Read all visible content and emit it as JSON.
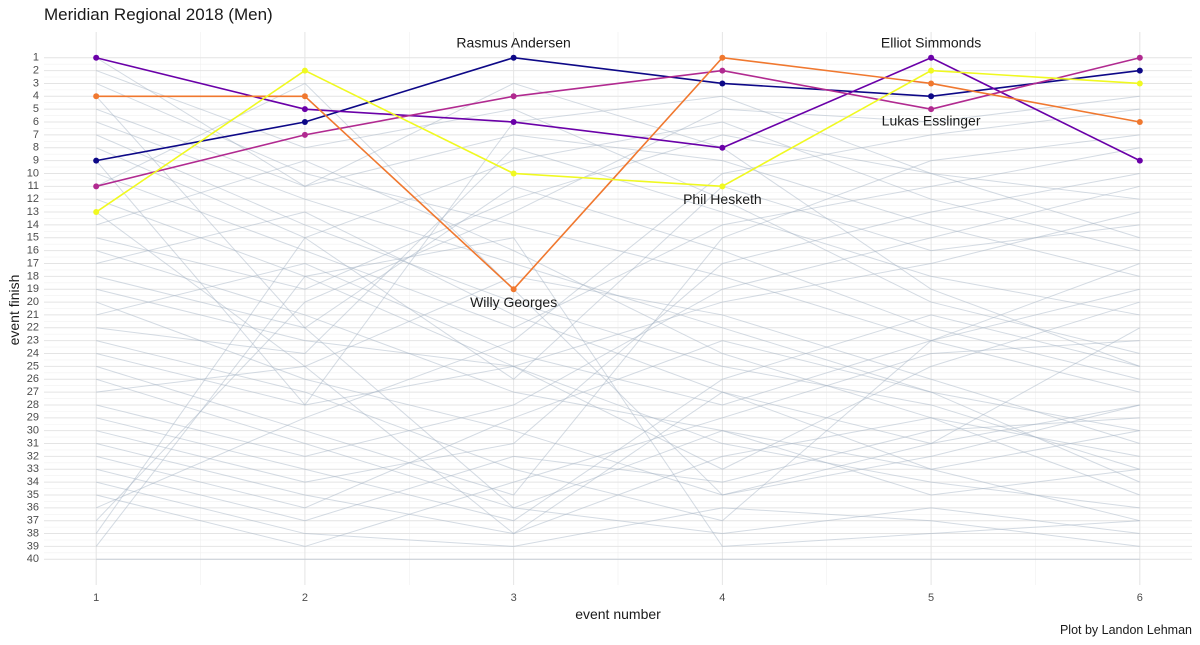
{
  "title": "Meridian Regional 2018 (Men)",
  "caption": "Plot by Landon Lehman",
  "chart_data": {
    "type": "line",
    "title": "Meridian Regional 2018 (Men)",
    "xlabel": "event number",
    "ylabel": "event finish",
    "x": [
      1,
      2,
      3,
      4,
      5,
      6
    ],
    "xlim": [
      0.75,
      6.25
    ],
    "ylim": [
      42,
      -1
    ],
    "y_reversed": true,
    "y_ticks": [
      1,
      2,
      3,
      4,
      5,
      6,
      7,
      8,
      9,
      10,
      11,
      12,
      13,
      14,
      15,
      16,
      17,
      18,
      19,
      20,
      21,
      22,
      23,
      24,
      25,
      26,
      27,
      28,
      29,
      30,
      31,
      32,
      33,
      34,
      35,
      36,
      37,
      38,
      39,
      40
    ],
    "grid": true,
    "series": [
      {
        "name": "Rasmus Andersen",
        "color": "#0d0887",
        "values": [
          9,
          6,
          1,
          3,
          4,
          2
        ]
      },
      {
        "name": "Elliot Simmonds",
        "color": "#6a00a8",
        "values": [
          1,
          5,
          6,
          8,
          1,
          9
        ]
      },
      {
        "name": "Lukas Esslinger",
        "color": "#b12a90",
        "values": [
          11,
          7,
          4,
          2,
          5,
          1
        ]
      },
      {
        "name": "Willy Georges",
        "color": "#f0782f",
        "values": [
          4,
          4,
          19,
          1,
          3,
          6
        ]
      },
      {
        "name": "Phil Hesketh",
        "color": "#f0f921",
        "values": [
          13,
          2,
          10,
          11,
          2,
          3
        ]
      }
    ],
    "annotations": [
      {
        "text": "Rasmus Andersen",
        "x": 3,
        "y": -0.1
      },
      {
        "text": "Elliot Simmonds",
        "x": 5,
        "y": -0.1
      },
      {
        "text": "Lukas Esslinger",
        "x": 5,
        "y": 6.0
      },
      {
        "text": "Phil Hesketh",
        "x": 4,
        "y": 12.1
      },
      {
        "text": "Willy Georges",
        "x": 3,
        "y": 20.1
      }
    ],
    "background_series_color": "#9fb0c2",
    "background_series": [
      [
        2,
        8,
        5,
        12,
        20,
        24
      ],
      [
        3,
        10,
        14,
        18,
        23,
        27
      ],
      [
        5,
        11,
        7,
        9,
        14,
        18
      ],
      [
        6,
        12,
        17,
        22,
        27,
        30
      ],
      [
        7,
        14,
        20,
        25,
        28,
        33
      ],
      [
        8,
        15,
        9,
        6,
        12,
        16
      ],
      [
        10,
        16,
        22,
        14,
        11,
        8
      ],
      [
        12,
        18,
        25,
        20,
        17,
        13
      ],
      [
        14,
        9,
        16,
        24,
        29,
        35
      ],
      [
        15,
        19,
        12,
        7,
        10,
        15
      ],
      [
        16,
        21,
        27,
        30,
        33,
        37
      ],
      [
        17,
        13,
        21,
        27,
        31,
        22
      ],
      [
        18,
        22,
        11,
        16,
        22,
        26
      ],
      [
        19,
        23,
        25,
        33,
        25,
        20
      ],
      [
        20,
        26,
        30,
        35,
        32,
        28
      ],
      [
        21,
        17,
        24,
        28,
        23,
        19
      ],
      [
        22,
        24,
        8,
        13,
        18,
        21
      ],
      [
        23,
        27,
        33,
        37,
        23,
        17
      ],
      [
        24,
        28,
        25,
        31,
        34,
        36
      ],
      [
        25,
        30,
        35,
        15,
        9,
        7
      ],
      [
        26,
        31,
        36,
        38,
        36,
        38
      ],
      [
        27,
        25,
        18,
        21,
        26,
        31
      ],
      [
        28,
        32,
        28,
        19,
        15,
        11
      ],
      [
        29,
        33,
        37,
        26,
        21,
        25
      ],
      [
        30,
        34,
        31,
        17,
        13,
        10
      ],
      [
        31,
        35,
        38,
        32,
        29,
        32
      ],
      [
        32,
        36,
        29,
        23,
        27,
        34
      ],
      [
        33,
        37,
        32,
        34,
        30,
        29
      ],
      [
        34,
        38,
        39,
        36,
        37,
        39
      ],
      [
        35,
        39,
        34,
        29,
        24,
        23
      ],
      [
        36,
        29,
        23,
        10,
        7,
        5
      ],
      [
        37,
        20,
        13,
        5,
        6,
        4
      ],
      [
        38,
        15,
        26,
        11,
        16,
        14
      ],
      [
        39,
        18,
        15,
        39,
        38,
        37
      ],
      [
        40,
        40,
        40,
        40,
        40,
        40
      ],
      [
        1,
        11,
        3,
        8,
        19,
        25
      ],
      [
        4,
        22,
        36,
        30,
        35,
        33
      ],
      [
        9,
        28,
        6,
        4,
        10,
        12
      ],
      [
        13,
        25,
        38,
        27,
        33,
        30
      ],
      [
        11,
        3,
        19,
        35,
        31,
        28
      ]
    ]
  }
}
